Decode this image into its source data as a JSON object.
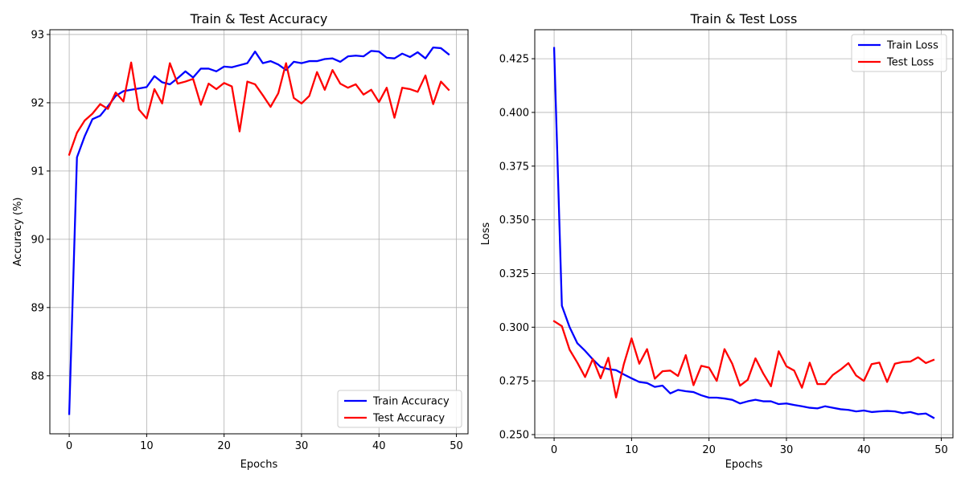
{
  "chart_data": [
    {
      "type": "line",
      "title": "Train & Test Accuracy",
      "xlabel": "Epochs",
      "ylabel": "Accuracy (%)",
      "xlim": [
        -2.5,
        51.5
      ],
      "ylim": [
        87.15,
        93.07
      ],
      "xticks": [
        0,
        10,
        20,
        30,
        40,
        50
      ],
      "yticks": [
        88,
        89,
        90,
        91,
        92,
        93
      ],
      "grid": true,
      "legend_position": "lower-right",
      "x": [
        0,
        1,
        2,
        3,
        4,
        5,
        6,
        7,
        8,
        9,
        10,
        11,
        12,
        13,
        14,
        15,
        16,
        17,
        18,
        19,
        20,
        21,
        22,
        23,
        24,
        25,
        26,
        27,
        28,
        29,
        30,
        31,
        32,
        33,
        34,
        35,
        36,
        37,
        38,
        39,
        40,
        41,
        42,
        43,
        44,
        45,
        46,
        47,
        48,
        49
      ],
      "series": [
        {
          "name": "Train Accuracy",
          "color": "#0000ff",
          "values": [
            87.44,
            91.2,
            91.51,
            91.76,
            91.81,
            91.95,
            92.1,
            92.17,
            92.19,
            92.21,
            92.23,
            92.39,
            92.3,
            92.27,
            92.36,
            92.46,
            92.37,
            92.5,
            92.5,
            92.46,
            92.53,
            92.52,
            92.55,
            92.58,
            92.75,
            92.58,
            92.61,
            92.56,
            92.48,
            92.6,
            92.58,
            92.61,
            92.61,
            92.64,
            92.65,
            92.6,
            92.68,
            92.69,
            92.68,
            92.76,
            92.75,
            92.66,
            92.65,
            92.72,
            92.67,
            92.74,
            92.65,
            92.81,
            92.8,
            92.71
          ]
        },
        {
          "name": "Test Accuracy",
          "color": "#ff0000",
          "values": [
            91.24,
            91.56,
            91.74,
            91.84,
            91.98,
            91.91,
            92.15,
            92.02,
            92.59,
            91.9,
            91.77,
            92.2,
            91.99,
            92.58,
            92.28,
            92.31,
            92.35,
            91.97,
            92.28,
            92.2,
            92.29,
            92.24,
            91.58,
            92.31,
            92.27,
            92.11,
            91.94,
            92.14,
            92.58,
            92.07,
            91.99,
            92.1,
            92.45,
            92.19,
            92.48,
            92.28,
            92.22,
            92.27,
            92.12,
            92.19,
            92.01,
            92.22,
            91.78,
            92.22,
            92.2,
            92.16,
            92.4,
            91.98,
            92.31,
            92.19
          ]
        }
      ]
    },
    {
      "type": "line",
      "title": "Train & Test Loss",
      "xlabel": "Epochs",
      "ylabel": "Loss",
      "xlim": [
        -2.5,
        51.5
      ],
      "ylim": [
        0.2485,
        0.4385
      ],
      "xticks": [
        0,
        10,
        20,
        30,
        40,
        50
      ],
      "yticks": [
        0.25,
        0.275,
        0.3,
        0.325,
        0.35,
        0.375,
        0.4,
        0.425
      ],
      "ytick_labels": [
        "0.250",
        "0.275",
        "0.300",
        "0.325",
        "0.350",
        "0.375",
        "0.400",
        "0.425"
      ],
      "grid": true,
      "legend_position": "upper-right",
      "x": [
        0,
        1,
        2,
        3,
        4,
        5,
        6,
        7,
        8,
        9,
        10,
        11,
        12,
        13,
        14,
        15,
        16,
        17,
        18,
        19,
        20,
        21,
        22,
        23,
        24,
        25,
        26,
        27,
        28,
        29,
        30,
        31,
        32,
        33,
        34,
        35,
        36,
        37,
        38,
        39,
        40,
        41,
        42,
        43,
        44,
        45,
        46,
        47,
        48,
        49
      ],
      "series": [
        {
          "name": "Train Loss",
          "color": "#0000ff",
          "values": [
            0.43,
            0.31,
            0.3,
            0.2925,
            0.289,
            0.285,
            0.2815,
            0.2805,
            0.28,
            0.278,
            0.2762,
            0.2745,
            0.274,
            0.2722,
            0.2728,
            0.2692,
            0.2708,
            0.2702,
            0.2698,
            0.2683,
            0.2672,
            0.2672,
            0.2668,
            0.2662,
            0.2645,
            0.2655,
            0.2662,
            0.2655,
            0.2655,
            0.2642,
            0.2645,
            0.2638,
            0.2632,
            0.2625,
            0.2622,
            0.2632,
            0.2625,
            0.2618,
            0.2615,
            0.2608,
            0.2612,
            0.2605,
            0.2608,
            0.261,
            0.2608,
            0.26,
            0.2605,
            0.2595,
            0.2598,
            0.2578
          ]
        },
        {
          "name": "Test Loss",
          "color": "#ff0000",
          "values": [
            0.3028,
            0.3005,
            0.2895,
            0.2835,
            0.2768,
            0.2852,
            0.2762,
            0.2858,
            0.2673,
            0.2828,
            0.2948,
            0.283,
            0.2898,
            0.276,
            0.2795,
            0.2798,
            0.2773,
            0.287,
            0.273,
            0.282,
            0.2812,
            0.275,
            0.2898,
            0.283,
            0.2728,
            0.2755,
            0.2855,
            0.2785,
            0.2725,
            0.2888,
            0.2818,
            0.2798,
            0.2718,
            0.2835,
            0.2735,
            0.2735,
            0.2778,
            0.2803,
            0.2833,
            0.2775,
            0.275,
            0.2828,
            0.2835,
            0.2745,
            0.283,
            0.2838,
            0.284,
            0.286,
            0.2833,
            0.2848
          ]
        }
      ]
    }
  ]
}
